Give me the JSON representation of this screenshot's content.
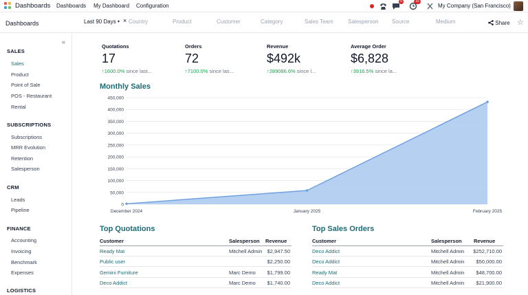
{
  "topbar": {
    "app_title": "Dashboards",
    "menu": [
      "Dashboards",
      "My Dashboard",
      "Configuration"
    ],
    "messages_badge": "6",
    "activity_badge": "31",
    "company": "My Company (San Francisco)"
  },
  "controlbar": {
    "breadcrumb": "Dashboards",
    "date_filter": "Last 90 Days",
    "filters": [
      "Country",
      "Product",
      "Customer",
      "Category",
      "Sales Team",
      "Salesperson",
      "Source",
      "Medium"
    ],
    "share": "Share"
  },
  "sidebar": {
    "sections": [
      {
        "title": "SALES",
        "items": [
          "Sales",
          "Product",
          "Point of Sale",
          "POS - Restaurant",
          "Rental"
        ]
      },
      {
        "title": "SUBSCRIPTIONS",
        "items": [
          "Subscriptions",
          "MRR Evolution",
          "Retention",
          "Salesperson"
        ]
      },
      {
        "title": "CRM",
        "items": [
          "Leads",
          "Pipeline"
        ]
      },
      {
        "title": "FINANCE",
        "items": [
          "Accounting",
          "Invoicing",
          "Benchmark",
          "Expenses"
        ]
      },
      {
        "title": "LOGISTICS",
        "items": []
      }
    ],
    "active_item": "Sales"
  },
  "kpis": [
    {
      "label": "Quotations",
      "value": "17",
      "delta": "1600.0%",
      "delta_suffix": "since last..."
    },
    {
      "label": "Orders",
      "value": "72",
      "delta": "7100.0%",
      "delta_suffix": "since las..."
    },
    {
      "label": "Revenue",
      "value": "$492k",
      "delta": "289086.6%",
      "delta_suffix": "since l..."
    },
    {
      "label": "Average Order",
      "value": "$6,828",
      "delta": "3916.5%",
      "delta_suffix": "since la..."
    }
  ],
  "monthly_sales_title": "Monthly Sales",
  "chart_data": {
    "type": "area",
    "categories": [
      "December 2024",
      "January 2025",
      "February 2025"
    ],
    "values": [
      2000,
      58000,
      432000
    ],
    "ylim": [
      0,
      450000
    ],
    "yticks": [
      "0",
      "50,000",
      "100,000",
      "150,000",
      "200,000",
      "250,000",
      "300,000",
      "350,000",
      "400,000",
      "450,000"
    ],
    "grid": true,
    "color": "#a9c8f0",
    "line_color": "#6fa1de"
  },
  "top_quotations": {
    "title": "Top Quotations",
    "columns": [
      "Customer",
      "Salesperson",
      "Revenue"
    ],
    "rows": [
      [
        "Ready Mat",
        "Mitchell Admin",
        "$2,947.50"
      ],
      [
        "Public user",
        "",
        "$2,250.00"
      ],
      [
        "Gemini Furniture",
        "Marc Demo",
        "$1,799.00"
      ],
      [
        "Deco Addict",
        "Marc Demo",
        "$1,740.00"
      ]
    ]
  },
  "top_sales_orders": {
    "title": "Top Sales Orders",
    "columns": [
      "Customer",
      "Salesperson",
      "Revenue"
    ],
    "rows": [
      [
        "Deco Addict",
        "Mitchell Admin",
        "$252,710.00"
      ],
      [
        "Deco Addict",
        "Mitchell Admin",
        "$50,000.00"
      ],
      [
        "Ready Mat",
        "Mitchell Admin",
        "$48,700.00"
      ],
      [
        "Deco Addict",
        "Mitchell Admin",
        "$21,900.00"
      ]
    ]
  }
}
